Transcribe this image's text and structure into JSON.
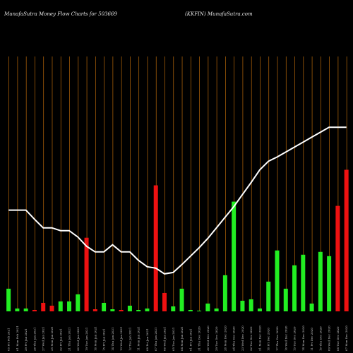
{
  "header": {
    "left_title": "MunafaSutra  Money Flow  Charts for 503669",
    "right_title": "(KKFIN) MunafaSutra.com"
  },
  "chart_data": {
    "type": "bar",
    "title": "MunafaSutra  Money Flow  Charts for 503669",
    "subtitle": "(KKFIN) MunafaSutra.com",
    "categories": [
      "05 Fri Feb 2021",
      "01 Mon Feb 2021",
      "29 Fri Jan 2021",
      "28 Thu Jan 2021",
      "27 Wed Jan 2021",
      "25 Mon Jan 2021",
      "22 Fri Jan 2021",
      "21 Thu Jan 2021",
      "20 Wed Jan 2021",
      "19 Tue Jan 2021",
      "18 Mon Jan 2021",
      "15 Fri Jan 2021",
      "14 Thu Jan 2021",
      "13 Wed Jan 2021",
      "12 Tue Jan 2021",
      "11 Mon Jan 2021",
      "08 Fri Jan 2021",
      "07 Thu Jan 2021",
      "06 Wed Jan 2021",
      "05 Tue Jan 2021",
      "04 Mon Jan 2021",
      "01 Fri Jan 2021",
      "31 Thu Dec 2020",
      "30 Wed Dec 2020",
      "29 Tue Dec 2020",
      "28 Mon Dec 2020",
      "24 Thu Dec 2020",
      "23 Wed Dec 2020",
      "22 Tue Dec 2020",
      "21 Mon Dec 2020",
      "18 Fri Dec 2020",
      "17 Thu Dec 2020",
      "16 Wed Dec 2020",
      "15 Tue Dec 2020",
      "14 Mon Dec 2020",
      "11 Fri Dec 2020",
      "10 Thu Dec 2020",
      "09 Wed Dec 2020",
      "08 Tue Dec 2020",
      "07 Mon Dec 2020"
    ],
    "tick_labels": [
      "05 Fri Feb 2021",
      "01 Mon Feb 2021",
      "29 Fri Jan 2021",
      "28 Thu Jan 2021",
      "27 Wed Jan 2021",
      "25 Mon Jan 2021",
      "22 Fri Jan 2021",
      "21 Thu Jan 2021",
      "20 Wed Jan 2021",
      "19 Tue Jan 2021",
      "18 Mon Jan 2021",
      "15 Fri Jan 2021",
      "14 Thu Jan 2021",
      "13 Wed Jan 2021",
      "12 Tue Jan 2021",
      "11 Mon Jan 2021",
      "08 Fri Jan 2021",
      "07 Thu Jan 2021",
      "06 Wed Jan 2021",
      "05 Tue Jan 2021",
      "04 Mon Jan 2021",
      "01 Fri Jan 2021",
      "31 Thu Dec 2020",
      "30 Wed Dec 2020",
      "29 Tue Dec 2020",
      "28 Mon Dec 2020",
      "24 Thu Dec 2020",
      "23 Wed Dec 2020",
      "22 Tue Dec 2020",
      "21 Mon Dec 2020",
      "18 Fri Dec 2020",
      "17 Thu Dec 2020",
      "16 Wed Dec 2020",
      "15 Tue Dec 2020",
      "14 Mon Dec 2020",
      "11 Fri Dec 2020",
      "10 Thu Dec 2020",
      "09 Wed Dec 2020",
      "08 Tue Dec 2020",
      "07 Mon Dec 2020"
    ],
    "values": [
      32,
      4,
      4,
      2,
      12,
      8,
      14,
      14,
      24,
      104,
      3,
      12,
      3,
      2,
      8,
      2,
      4,
      178,
      26,
      7,
      32,
      2,
      1,
      11,
      4,
      51,
      155,
      15,
      17,
      4,
      42,
      86,
      32,
      65,
      80,
      11,
      84,
      78,
      149,
      200
    ],
    "colors": [
      "green",
      "green",
      "green",
      "red",
      "red",
      "red",
      "green",
      "green",
      "green",
      "red",
      "red",
      "green",
      "green",
      "red",
      "green",
      "green",
      "green",
      "red",
      "red",
      "green",
      "green",
      "green",
      "green",
      "green",
      "green",
      "green",
      "green",
      "green",
      "green",
      "green",
      "green",
      "green",
      "green",
      "green",
      "green",
      "green",
      "green",
      "green",
      "red",
      "red"
    ],
    "line": [
      143,
      143,
      143,
      130,
      118,
      118,
      114,
      114,
      105,
      92,
      84,
      84,
      94,
      84,
      84,
      72,
      63,
      61,
      53,
      55,
      66,
      78,
      90,
      103,
      118,
      133,
      148,
      165,
      182,
      200,
      212,
      218,
      225,
      232,
      239,
      246,
      253,
      260,
      260,
      260
    ],
    "ylim": [
      0,
      370
    ],
    "grid": true,
    "legend": "none",
    "bar_colors": {
      "green": "#22ee22",
      "red": "#ee1111"
    },
    "line_color": "#ffffff",
    "grid_color": "#b8680a"
  }
}
